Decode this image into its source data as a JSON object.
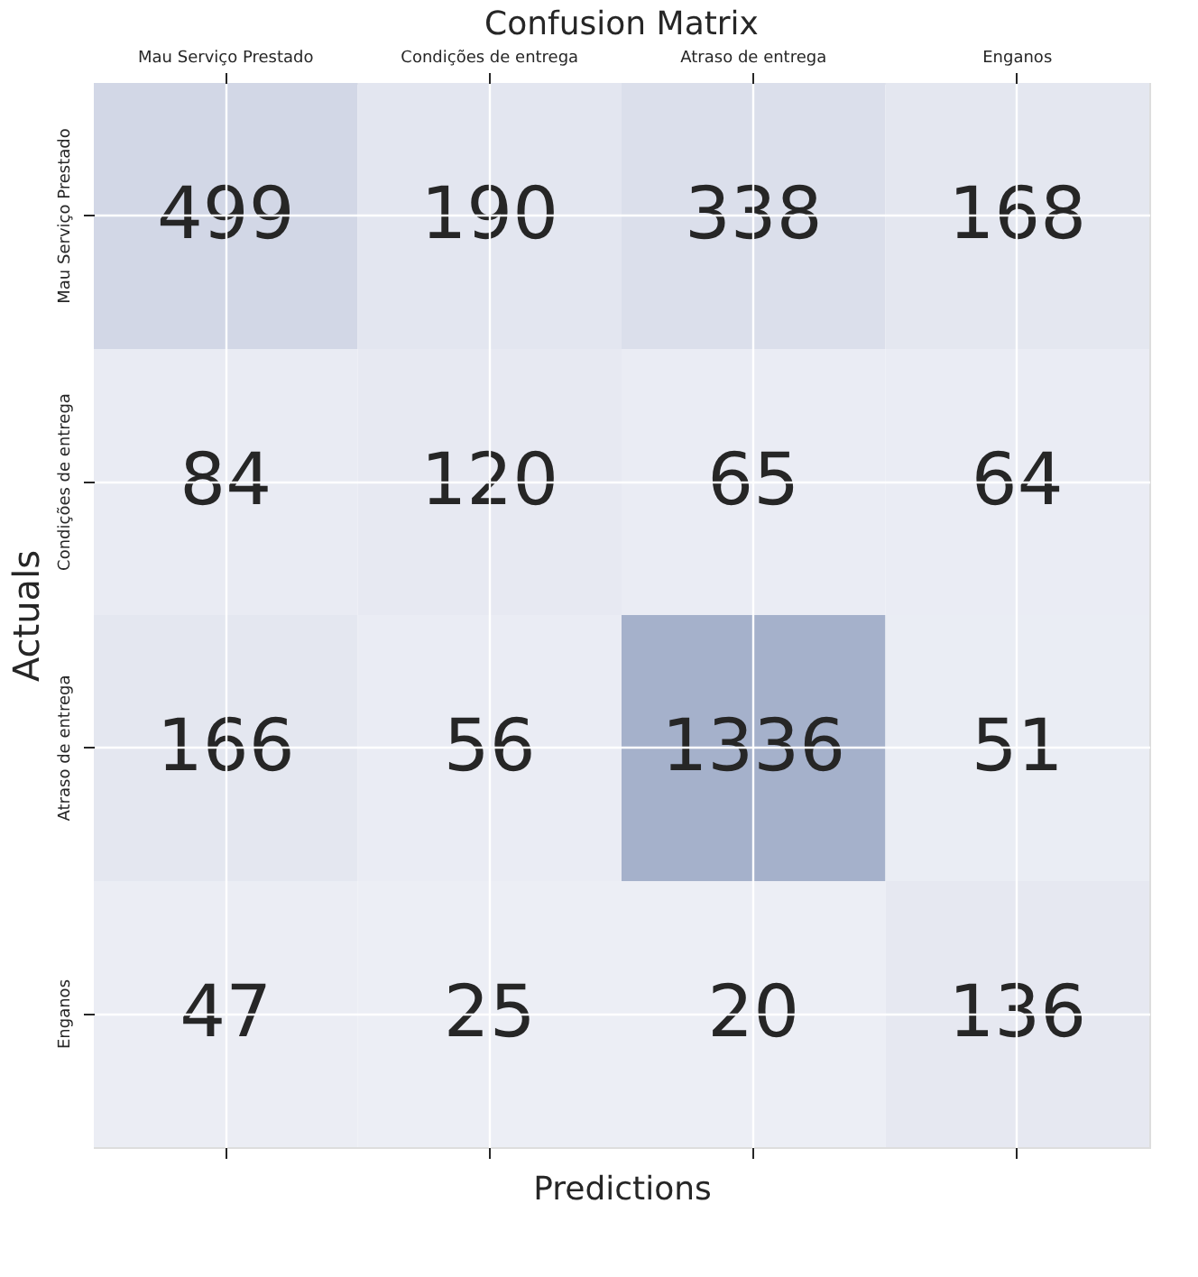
{
  "chart_data": {
    "type": "heatmap",
    "title": "Confusion Matrix",
    "xlabel": "Predictions",
    "ylabel": "Actuals",
    "categories": [
      "Mau Serviço Prestado",
      "Condições de entrega",
      "Atraso de entrega",
      "Enganos"
    ],
    "y_categories": [
      "Mau Serviço Prestado",
      "Condições de entrega",
      "Atraso de entrega",
      "Enganos"
    ],
    "cells": [
      [
        499,
        190,
        338,
        168
      ],
      [
        84,
        120,
        65,
        64
      ],
      [
        166,
        56,
        1336,
        51
      ],
      [
        47,
        25,
        20,
        136
      ]
    ],
    "data_labels": true,
    "grid": true
  }
}
